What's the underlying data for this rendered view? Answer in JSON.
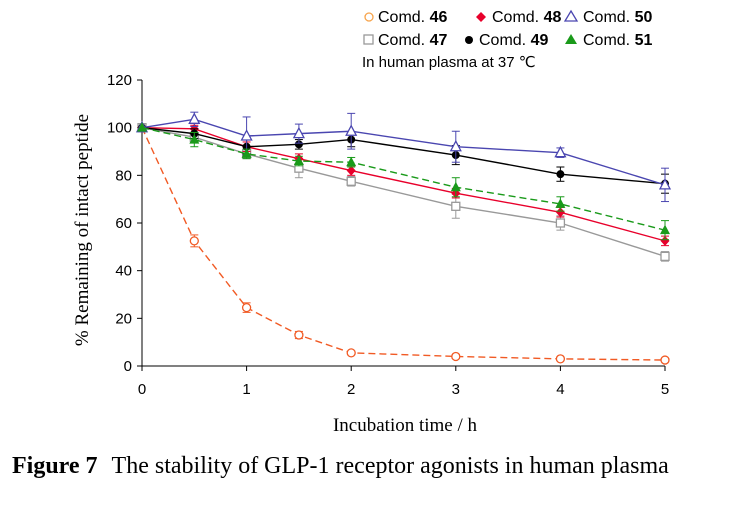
{
  "chart_data": {
    "type": "line",
    "title": "",
    "xlabel": "Incubation time / h",
    "ylabel": "% Remaining of intact peptide",
    "xlim": [
      0,
      5
    ],
    "ylim": [
      0,
      120
    ],
    "x_ticks": [
      "0",
      "1",
      "2",
      "3",
      "4",
      "5"
    ],
    "y_ticks": [
      "0",
      "20",
      "40",
      "60",
      "80",
      "100",
      "120"
    ],
    "grid": false,
    "annotation": "In human plasma at 37 ℃",
    "legend_position": "top",
    "series": [
      {
        "name": "Comd.",
        "id": "46",
        "color": "#f15a24",
        "marker": "circle-open",
        "dash": "dashed",
        "x": [
          0,
          0.5,
          1,
          1.5,
          2,
          3,
          4,
          5
        ],
        "y": [
          100,
          52.5,
          24.5,
          13,
          5.5,
          4,
          3,
          2.5
        ],
        "err": [
          0,
          2.5,
          2,
          1.5,
          0.8,
          0.8,
          0.8,
          0.8
        ]
      },
      {
        "name": "Comd.",
        "id": "47",
        "color": "#999999",
        "marker": "square-open",
        "dash": "solid",
        "x": [
          0,
          0.5,
          1,
          1.5,
          2,
          3,
          4,
          5
        ],
        "y": [
          100,
          96,
          89,
          83,
          77.5,
          67,
          60,
          46
        ],
        "err": [
          0,
          2,
          2,
          4,
          2,
          5,
          3,
          2
        ]
      },
      {
        "name": "Comd.",
        "id": "48",
        "color": "#e8002b",
        "marker": "diamond",
        "dash": "solid",
        "x": [
          0,
          0.5,
          1,
          1.5,
          2,
          3,
          4,
          5
        ],
        "y": [
          100,
          99.5,
          92,
          87,
          82,
          72.5,
          64.5,
          52.5
        ],
        "err": [
          0,
          1.5,
          2,
          2,
          2,
          2,
          2,
          2
        ]
      },
      {
        "name": "Comd.",
        "id": "49",
        "color": "#000000",
        "marker": "circle",
        "dash": "solid",
        "x": [
          0,
          0.5,
          1,
          1.5,
          2,
          3,
          4,
          5
        ],
        "y": [
          100,
          97.5,
          92,
          93,
          95,
          88.5,
          80.5,
          76.5
        ],
        "err": [
          0,
          2,
          3,
          2,
          3,
          4,
          3,
          4
        ]
      },
      {
        "name": "Comd.",
        "id": "50",
        "color": "#4a46b0",
        "marker": "triangle-open",
        "dash": "solid",
        "x": [
          0,
          0.5,
          1,
          1.5,
          2,
          3,
          4,
          5
        ],
        "y": [
          100,
          103.5,
          96.5,
          97.5,
          98.5,
          92,
          89.5,
          76
        ],
        "err": [
          0,
          3,
          8,
          4,
          7.5,
          6.5,
          2,
          7
        ]
      },
      {
        "name": "Comd.",
        "id": "51",
        "color": "#1a9a1a",
        "marker": "triangle",
        "dash": "dashed",
        "x": [
          0,
          0.5,
          1,
          1.5,
          2,
          3,
          4,
          5
        ],
        "y": [
          100,
          95,
          89,
          86,
          85.5,
          75,
          68,
          57
        ],
        "err": [
          0,
          3,
          2,
          2,
          2,
          4,
          3,
          4
        ]
      }
    ]
  },
  "caption": {
    "label": "Figure 7",
    "text": "The stability of GLP-1 receptor agonists in human plasma"
  }
}
